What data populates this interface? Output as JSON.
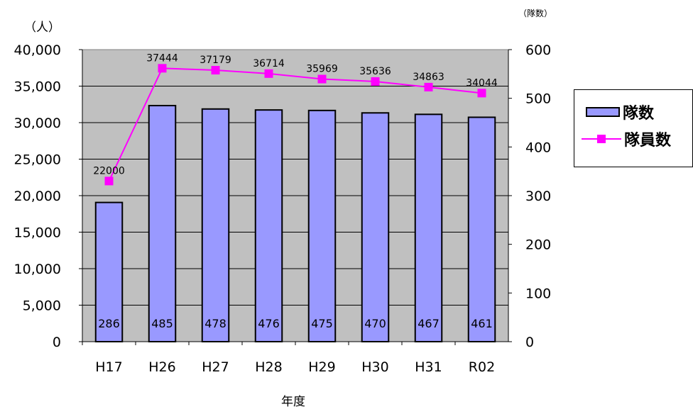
{
  "chart_data": {
    "type": "bar",
    "categories": [
      "H17",
      "H26",
      "H27",
      "H28",
      "H29",
      "H30",
      "H31",
      "R02"
    ],
    "xlabel": "年度",
    "y_left_unit": "（人）",
    "y_right_unit": "（隊数）",
    "y_left": {
      "ylim": [
        0,
        40000
      ],
      "ticks": [
        "0",
        "5,000",
        "10,000",
        "15,000",
        "20,000",
        "25,000",
        "30,000",
        "35,000",
        "40,000"
      ]
    },
    "y_right": {
      "ylim": [
        0,
        600
      ],
      "ticks": [
        "0",
        "100",
        "200",
        "300",
        "400",
        "500",
        "600"
      ]
    },
    "series": [
      {
        "name": "隊数",
        "type": "bar",
        "axis": "right",
        "color": "#9999ff",
        "values": [
          286,
          485,
          478,
          476,
          475,
          470,
          467,
          461
        ]
      },
      {
        "name": "隊員数",
        "type": "line",
        "axis": "left",
        "color": "#ff00ff",
        "values": [
          22000,
          37444,
          37179,
          36714,
          35969,
          35636,
          34863,
          34044
        ]
      }
    ],
    "plot_background": "#c0c0c0",
    "grid": true,
    "legend": "right"
  }
}
